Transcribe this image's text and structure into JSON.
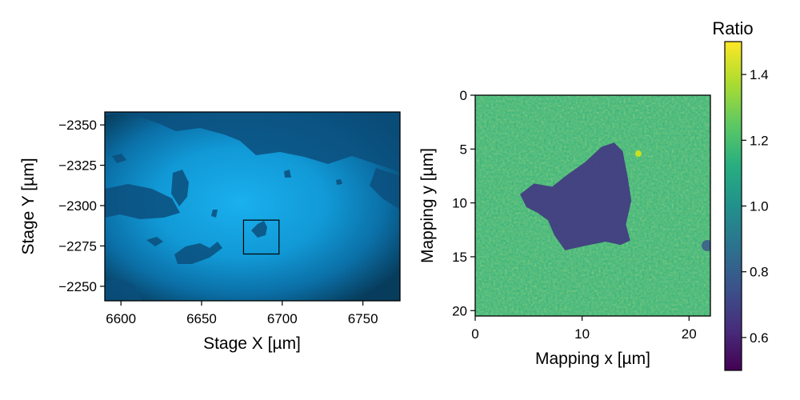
{
  "chart_data": [
    {
      "type": "image",
      "name": "optical micrograph",
      "xlabel": "Stage X [µm]",
      "ylabel": "Stage Y [µm]",
      "xlim": [
        6590,
        6773
      ],
      "ylim": [
        -2241,
        -2358
      ],
      "xticks": [
        6600,
        6650,
        6700,
        6750
      ],
      "xtick_labels": [
        "6600",
        "6650",
        "6700",
        "6750"
      ],
      "yticks": [
        -2350,
        -2325,
        -2300,
        -2275,
        -2250
      ],
      "ytick_labels": [
        "−2350",
        "−2325",
        "−2300",
        "−2275",
        "−2250"
      ],
      "annotations": [
        {
          "type": "rectangle",
          "x0": 6676,
          "x1": 6698,
          "y0": -2291,
          "y1": -2270,
          "color": "#000000"
        }
      ],
      "colors": {
        "bright": "#1ab0ee",
        "mid": "#0d7fbf",
        "dark": "#073c5c",
        "flake": "#0b4f7d"
      }
    },
    {
      "type": "heatmap",
      "name": "ratio map",
      "xlabel": "Mapping x [µm]",
      "ylabel": "Mapping y [µm]",
      "xlim": [
        0,
        22
      ],
      "ylim": [
        20.5,
        0
      ],
      "xticks": [
        0,
        10,
        20
      ],
      "xtick_labels": [
        "0",
        "10",
        "20"
      ],
      "yticks": [
        0,
        5,
        10,
        15,
        20
      ],
      "ytick_labels": [
        "0",
        "5",
        "10",
        "15",
        "20"
      ],
      "colormap": "viridis",
      "background_value": 1.15,
      "flake_value": 0.68,
      "flake_outline": [
        [
          4.2,
          9.2
        ],
        [
          5.5,
          8.2
        ],
        [
          7.2,
          8.5
        ],
        [
          8.6,
          7.4
        ],
        [
          10.3,
          6.2
        ],
        [
          11.8,
          4.8
        ],
        [
          13.0,
          4.4
        ],
        [
          13.8,
          5.2
        ],
        [
          14.3,
          7.8
        ],
        [
          14.6,
          9.8
        ],
        [
          14.1,
          12.0
        ],
        [
          14.5,
          13.5
        ],
        [
          13.6,
          13.9
        ],
        [
          12.2,
          13.6
        ],
        [
          10.2,
          14.0
        ],
        [
          8.4,
          14.4
        ],
        [
          7.4,
          13.0
        ],
        [
          6.8,
          11.6
        ],
        [
          5.8,
          10.9
        ],
        [
          4.8,
          10.4
        ]
      ],
      "colorbar": {
        "title": "Ratio",
        "vmin": 0.5,
        "vmax": 1.5,
        "ticks": [
          0.6,
          0.8,
          1.0,
          1.2,
          1.4
        ],
        "tick_labels": [
          "0.6",
          "0.8",
          "1.0",
          "1.2",
          "1.4"
        ]
      }
    }
  ]
}
